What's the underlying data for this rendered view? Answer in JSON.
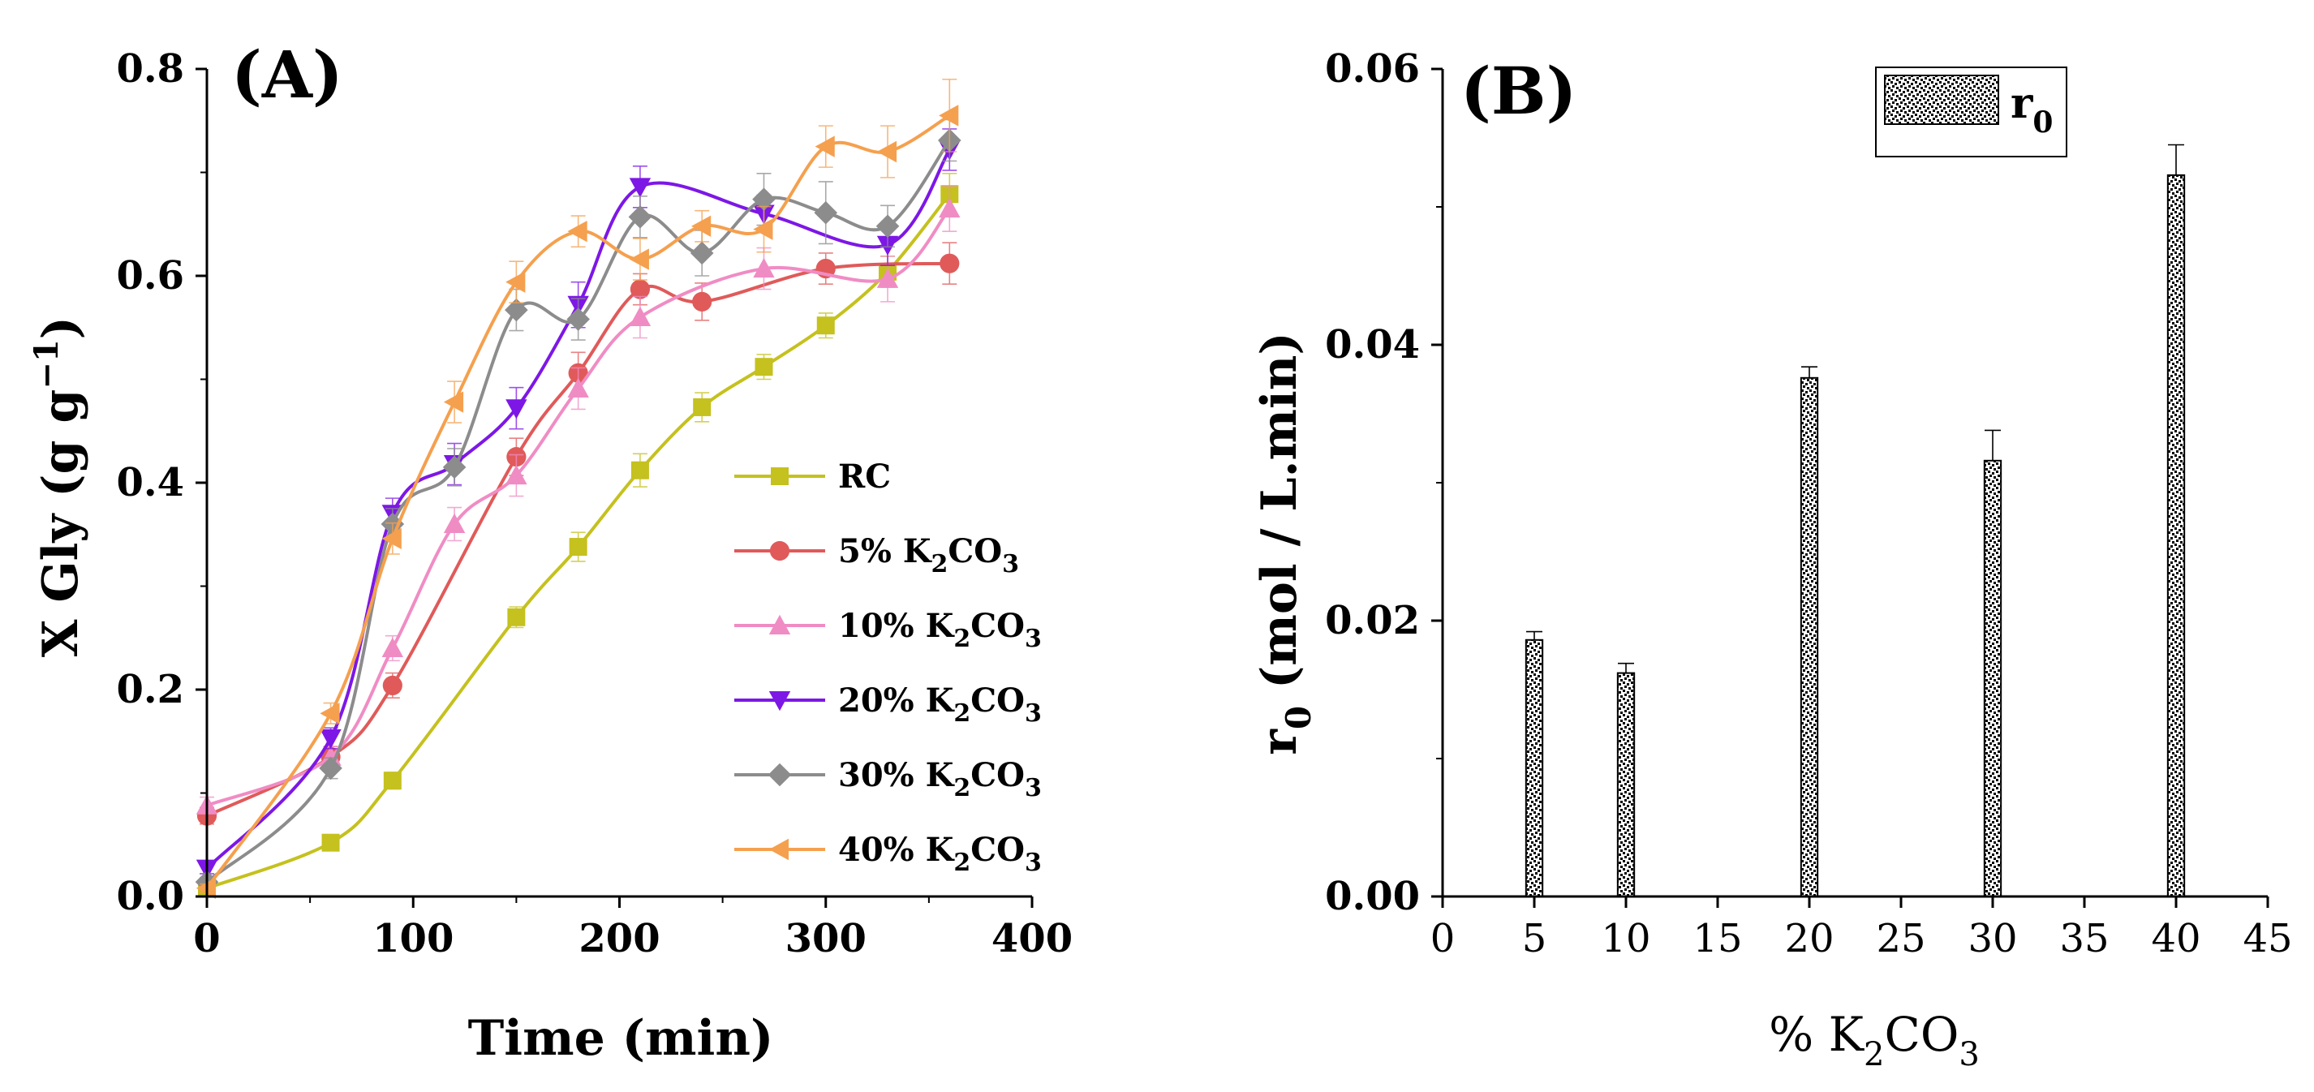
{
  "chart_data": [
    {
      "type": "line",
      "panel_label": "(A)",
      "title": "",
      "xlabel": "Time (min)",
      "ylabel_parts": [
        "X Gly (g g",
        "−1",
        ")"
      ],
      "xlim": [
        0,
        400
      ],
      "ylim": [
        0,
        0.8
      ],
      "xticks": [
        0,
        100,
        200,
        300,
        400
      ],
      "xtick_labels": [
        "0",
        "100",
        "200",
        "300",
        "400"
      ],
      "yticks": [
        0,
        0.2,
        0.4,
        0.6,
        0.8
      ],
      "ytick_labels": [
        "0.0",
        "0.2",
        "0.4",
        "0.6",
        "0.8"
      ],
      "legend_position": "center-right",
      "series": [
        {
          "name": "RC",
          "label_base": "RC",
          "label_sub": [],
          "marker": "square",
          "color": "#c5c11e",
          "x": [
            0,
            60,
            90,
            150,
            180,
            210,
            240,
            270,
            300,
            330,
            360
          ],
          "y": [
            0.008,
            0.052,
            0.112,
            0.27,
            0.338,
            0.412,
            0.473,
            0.512,
            0.552,
            0.604,
            0.679
          ],
          "err": [
            0.004,
            0.006,
            0.008,
            0.01,
            0.014,
            0.016,
            0.014,
            0.012,
            0.012,
            0.015,
            0.02
          ]
        },
        {
          "name": "5% K2CO3",
          "label_base": "5% K",
          "label_sub": [
            "2",
            "CO",
            "3"
          ],
          "marker": "circle",
          "color": "#e05a5a",
          "x": [
            0,
            60,
            90,
            150,
            180,
            210,
            240,
            300,
            360
          ],
          "y": [
            0.078,
            0.135,
            0.204,
            0.425,
            0.506,
            0.587,
            0.575,
            0.607,
            0.612
          ],
          "err": [
            0.008,
            0.01,
            0.012,
            0.018,
            0.02,
            0.015,
            0.018,
            0.015,
            0.02
          ]
        },
        {
          "name": "10% K2CO3",
          "label_base": "10% K",
          "label_sub": [
            "2",
            "CO",
            "3"
          ],
          "marker": "triangle-up",
          "color": "#f08cc4",
          "x": [
            0,
            60,
            90,
            120,
            150,
            180,
            210,
            270,
            330,
            360
          ],
          "y": [
            0.088,
            0.135,
            0.24,
            0.36,
            0.407,
            0.491,
            0.56,
            0.607,
            0.597,
            0.665
          ],
          "err": [
            0.008,
            0.01,
            0.012,
            0.016,
            0.02,
            0.02,
            0.02,
            0.02,
            0.022,
            0.022
          ]
        },
        {
          "name": "20% K2CO3",
          "label_base": "20% K",
          "label_sub": [
            "2",
            "CO",
            "3"
          ],
          "marker": "triangle-down",
          "color": "#7d17e6",
          "x": [
            0,
            60,
            90,
            120,
            150,
            180,
            210,
            270,
            330,
            360
          ],
          "y": [
            0.027,
            0.153,
            0.37,
            0.418,
            0.472,
            0.572,
            0.686,
            0.66,
            0.63,
            0.722
          ],
          "err": [
            0.005,
            0.01,
            0.015,
            0.02,
            0.02,
            0.022,
            0.02,
            0.018,
            0.02,
            0.02
          ]
        },
        {
          "name": "30% K2CO3",
          "label_base": "30% K",
          "label_sub": [
            "2",
            "CO",
            "3"
          ],
          "marker": "diamond",
          "color": "#8c8c8c",
          "x": [
            0,
            60,
            90,
            120,
            150,
            180,
            210,
            240,
            270,
            300,
            330,
            360
          ],
          "y": [
            0.014,
            0.124,
            0.36,
            0.415,
            0.567,
            0.558,
            0.657,
            0.622,
            0.674,
            0.661,
            0.648,
            0.731
          ],
          "err": [
            0.004,
            0.01,
            0.015,
            0.018,
            0.02,
            0.02,
            0.02,
            0.022,
            0.025,
            0.03,
            0.02,
            0.02
          ]
        },
        {
          "name": "40% K2CO3",
          "label_base": "40% K",
          "label_sub": [
            "2",
            "CO",
            "3"
          ],
          "marker": "triangle-left",
          "color": "#f5a04e",
          "x": [
            0,
            60,
            90,
            120,
            150,
            180,
            210,
            240,
            270,
            300,
            330,
            360
          ],
          "y": [
            0.008,
            0.177,
            0.346,
            0.478,
            0.594,
            0.643,
            0.616,
            0.648,
            0.645,
            0.725,
            0.72,
            0.755
          ],
          "err": [
            0.004,
            0.01,
            0.015,
            0.02,
            0.02,
            0.015,
            0.02,
            0.015,
            0.022,
            0.02,
            0.025,
            0.035
          ]
        }
      ]
    },
    {
      "type": "bar",
      "panel_label": "(B)",
      "title": "",
      "xlabel_parts": [
        "% K",
        "2",
        "CO",
        "3"
      ],
      "ylabel_parts": [
        "r",
        "0",
        " (mol / L.min)"
      ],
      "xlim": [
        0,
        45
      ],
      "ylim": [
        0,
        0.06
      ],
      "xticks": [
        0,
        5,
        10,
        15,
        20,
        25,
        30,
        35,
        40,
        45
      ],
      "xtick_labels": [
        "0",
        "5",
        "10",
        "15",
        "20",
        "25",
        "30",
        "35",
        "40",
        "45"
      ],
      "yticks": [
        0,
        0.02,
        0.04,
        0.06
      ],
      "ytick_labels": [
        "0.00",
        "0.02",
        "0.04",
        "0.06"
      ],
      "legend_position": "top-right",
      "legend": [
        {
          "base": "r",
          "sub": "0"
        }
      ],
      "bar_width": 0.9,
      "categories": [
        5,
        10,
        20,
        30,
        40
      ],
      "values": [
        0.0186,
        0.0162,
        0.0376,
        0.0316,
        0.0523
      ],
      "err": [
        0.0006,
        0.0007,
        0.0008,
        0.0022,
        0.0022
      ]
    }
  ]
}
